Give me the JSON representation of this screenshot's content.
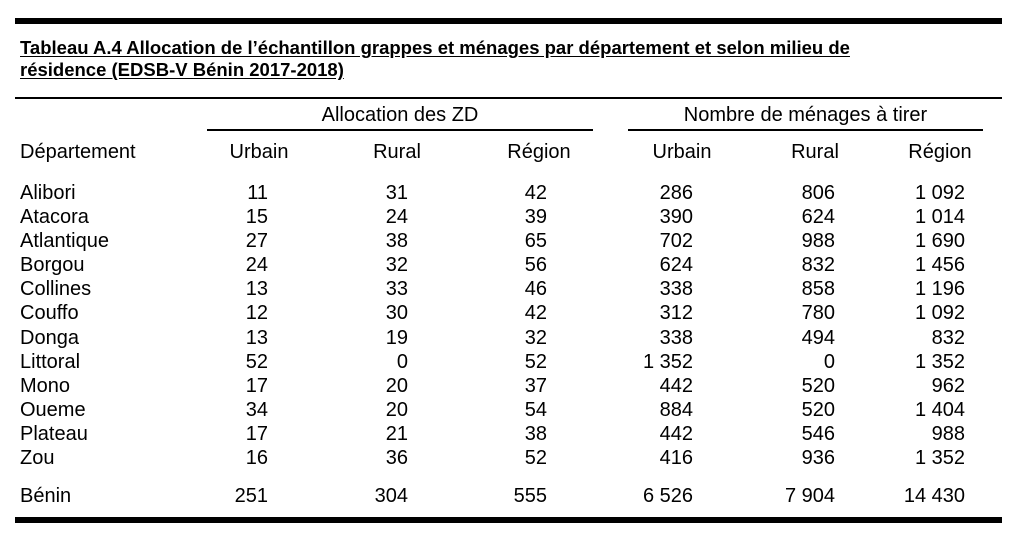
{
  "title": {
    "line1": "Tableau A.4  Allocation de l’échantillon grappes et ménages par département et selon milieu de",
    "line2": "résidence (EDSB-V Bénin 2017-2018)"
  },
  "group_headers": {
    "allocation": "Allocation des ZD",
    "menages": "Nombre de ménages à tirer"
  },
  "columns": {
    "departement": "Département",
    "zd_urbain": "Urbain",
    "zd_rural": "Rural",
    "zd_region": "Région",
    "men_urbain": "Urbain",
    "men_rural": "Rural",
    "men_region": "Région"
  },
  "rows": [
    {
      "name": "Alibori",
      "zd_urbain": "11",
      "zd_rural": "31",
      "zd_region": "42",
      "men_urbain": "286",
      "men_rural": "806",
      "men_region": "1 092"
    },
    {
      "name": "Atacora",
      "zd_urbain": "15",
      "zd_rural": "24",
      "zd_region": "39",
      "men_urbain": "390",
      "men_rural": "624",
      "men_region": "1 014"
    },
    {
      "name": "Atlantique",
      "zd_urbain": "27",
      "zd_rural": "38",
      "zd_region": "65",
      "men_urbain": "702",
      "men_rural": "988",
      "men_region": "1 690"
    },
    {
      "name": "Borgou",
      "zd_urbain": "24",
      "zd_rural": "32",
      "zd_region": "56",
      "men_urbain": "624",
      "men_rural": "832",
      "men_region": "1 456"
    },
    {
      "name": "Collines",
      "zd_urbain": "13",
      "zd_rural": "33",
      "zd_region": "46",
      "men_urbain": "338",
      "men_rural": "858",
      "men_region": "1 196"
    },
    {
      "name": "Couffo",
      "zd_urbain": "12",
      "zd_rural": "30",
      "zd_region": "42",
      "men_urbain": "312",
      "men_rural": "780",
      "men_region": "1 092"
    },
    {
      "name": "Donga",
      "zd_urbain": "13",
      "zd_rural": "19",
      "zd_region": "32",
      "men_urbain": "338",
      "men_rural": "494",
      "men_region": "832"
    },
    {
      "name": "Littoral",
      "zd_urbain": "52",
      "zd_rural": "0",
      "zd_region": "52",
      "men_urbain": "1 352",
      "men_rural": "0",
      "men_region": "1 352"
    },
    {
      "name": "Mono",
      "zd_urbain": "17",
      "zd_rural": "20",
      "zd_region": "37",
      "men_urbain": "442",
      "men_rural": "520",
      "men_region": "962"
    },
    {
      "name": "Oueme",
      "zd_urbain": "34",
      "zd_rural": "20",
      "zd_region": "54",
      "men_urbain": "884",
      "men_rural": "520",
      "men_region": "1 404"
    },
    {
      "name": "Plateau",
      "zd_urbain": "17",
      "zd_rural": "21",
      "zd_region": "38",
      "men_urbain": "442",
      "men_rural": "546",
      "men_region": "988"
    },
    {
      "name": "Zou",
      "zd_urbain": "16",
      "zd_rural": "36",
      "zd_region": "52",
      "men_urbain": "416",
      "men_rural": "936",
      "men_region": "1 352"
    }
  ],
  "total": {
    "name": "Bénin",
    "zd_urbain": "251",
    "zd_rural": "304",
    "zd_region": "555",
    "men_urbain": "6 526",
    "men_rural": "7 904",
    "men_region": "14 430"
  }
}
